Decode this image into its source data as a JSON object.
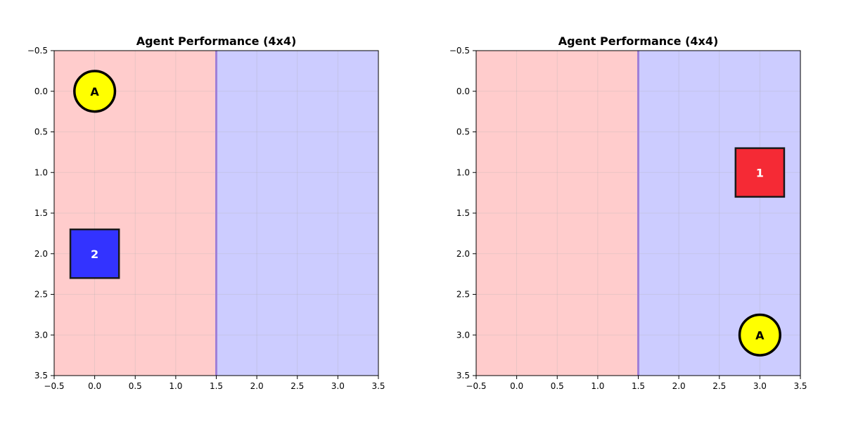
{
  "chart_data": [
    {
      "type": "scatter",
      "title": "Agent Performance (4x4)",
      "xlabel": "",
      "ylabel": "",
      "xlim": [
        -0.5,
        3.5
      ],
      "ylim": [
        3.5,
        -0.5
      ],
      "y_inverted": true,
      "grid": true,
      "xticks": [
        "−0.5",
        "0.0",
        "0.5",
        "1.0",
        "1.5",
        "2.0",
        "2.5",
        "3.0",
        "3.5"
      ],
      "yticks": [
        "−0.5",
        "0.0",
        "0.5",
        "1.0",
        "1.5",
        "2.0",
        "2.5",
        "3.0",
        "3.5"
      ],
      "regions": [
        {
          "x_from": -0.5,
          "x_to": 1.5,
          "color": "#ffcccc"
        },
        {
          "x_from": 1.5,
          "x_to": 3.5,
          "color": "#ccccff"
        }
      ],
      "boundary_x": 1.5,
      "markers": [
        {
          "shape": "circle",
          "label": "A",
          "x": 0.0,
          "y": 0.0,
          "color": "#ffff00",
          "text_color": "#000000"
        },
        {
          "shape": "square",
          "label": "2",
          "x": 0.0,
          "y": 2.0,
          "color": "#3333ff",
          "text_color": "#ffffff"
        }
      ]
    },
    {
      "type": "scatter",
      "title": "Agent Performance (4x4)",
      "xlabel": "",
      "ylabel": "",
      "xlim": [
        -0.5,
        3.5
      ],
      "ylim": [
        3.5,
        -0.5
      ],
      "y_inverted": true,
      "grid": true,
      "xticks": [
        "−0.5",
        "0.0",
        "0.5",
        "1.0",
        "1.5",
        "2.0",
        "2.5",
        "3.0",
        "3.5"
      ],
      "yticks": [
        "−0.5",
        "0.0",
        "0.5",
        "1.0",
        "1.5",
        "2.0",
        "2.5",
        "3.0",
        "3.5"
      ],
      "regions": [
        {
          "x_from": -0.5,
          "x_to": 1.5,
          "color": "#ffcccc"
        },
        {
          "x_from": 1.5,
          "x_to": 3.5,
          "color": "#ccccff"
        }
      ],
      "boundary_x": 1.5,
      "markers": [
        {
          "shape": "square",
          "label": "1",
          "x": 3.0,
          "y": 1.0,
          "color": "#f52a35",
          "text_color": "#ffffff"
        },
        {
          "shape": "circle",
          "label": "A",
          "x": 3.0,
          "y": 3.0,
          "color": "#ffff00",
          "text_color": "#000000"
        }
      ]
    }
  ]
}
